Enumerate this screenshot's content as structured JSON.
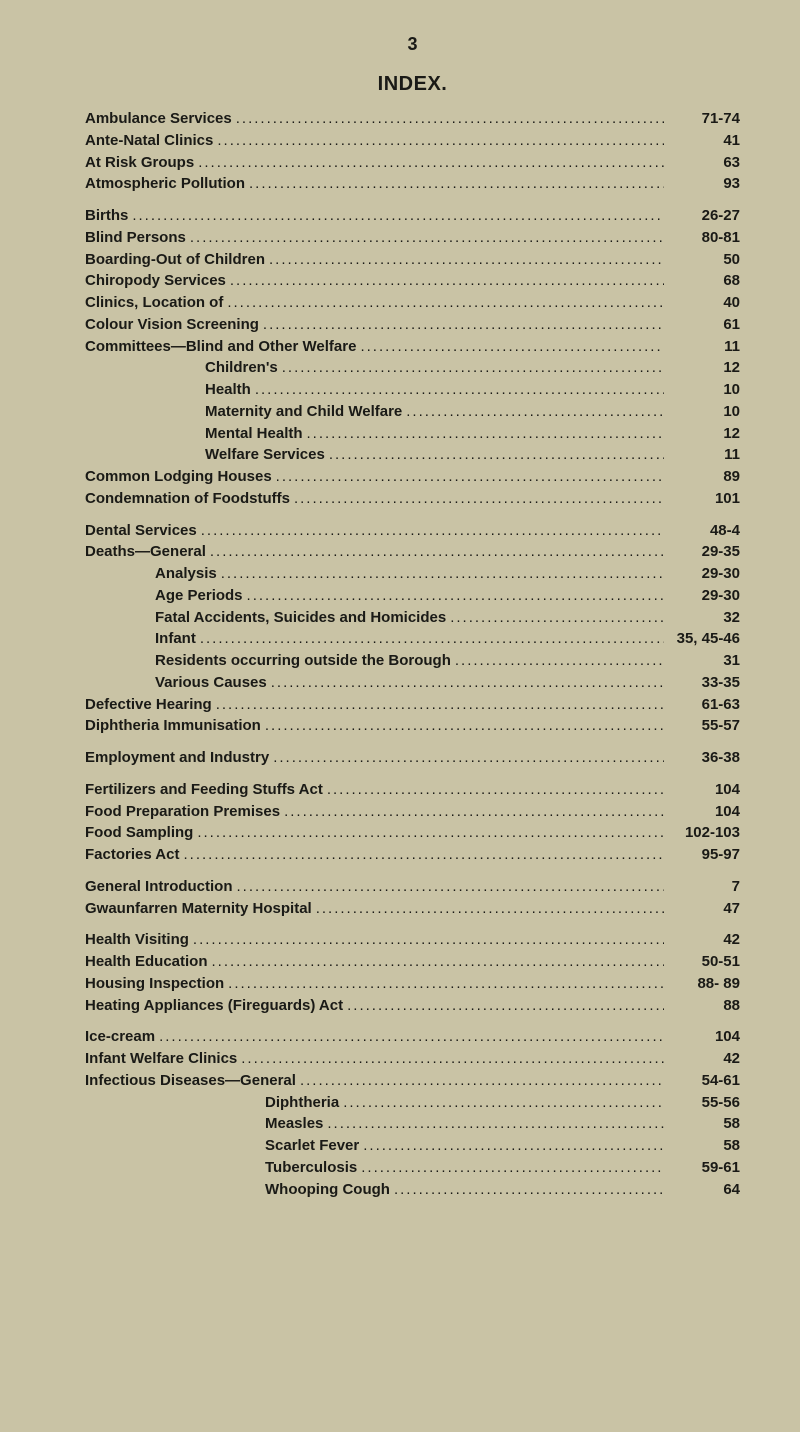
{
  "page_number": "3",
  "title": "INDEX.",
  "sections": [
    {
      "rows": [
        {
          "label": "Ambulance Services",
          "page": "71-74",
          "indent": 0
        },
        {
          "label": "Ante-Natal Clinics",
          "page": "41",
          "indent": 0
        },
        {
          "label": "At Risk Groups",
          "page": "63",
          "indent": 0
        },
        {
          "label": "Atmospheric Pollution",
          "page": "93",
          "indent": 0
        }
      ]
    },
    {
      "rows": [
        {
          "label": "Births",
          "page": "26-27",
          "indent": 0
        },
        {
          "label": "Blind Persons",
          "page": "80-81",
          "indent": 0
        },
        {
          "label": "Boarding-Out of Children",
          "page": "50",
          "indent": 0
        },
        {
          "label": "Chiropody Services",
          "page": "68",
          "indent": 0
        },
        {
          "label": "Clinics, Location of",
          "page": "40",
          "indent": 0
        },
        {
          "label": "Colour Vision Screening",
          "page": "61",
          "indent": 0
        },
        {
          "label": "Committees—Blind and Other Welfare",
          "page": "11",
          "indent": 0
        },
        {
          "label": "Children's",
          "page": "12",
          "indent": 1
        },
        {
          "label": "Health",
          "page": "10",
          "indent": 1
        },
        {
          "label": "Maternity and Child Welfare",
          "page": "10",
          "indent": 1
        },
        {
          "label": "Mental Health",
          "page": "12",
          "indent": 1
        },
        {
          "label": "Welfare Services",
          "page": "11",
          "indent": 1
        },
        {
          "label": "Common Lodging Houses",
          "page": "89",
          "indent": 0
        },
        {
          "label": "Condemnation of Foodstuffs",
          "page": "101",
          "indent": 0
        }
      ]
    },
    {
      "rows": [
        {
          "label": "Dental Services",
          "page": "48-4",
          "indent": 0
        },
        {
          "label": "Deaths—General",
          "page": "29-35",
          "indent": 0
        },
        {
          "label": "Analysis",
          "page": "29-30",
          "indent": 2
        },
        {
          "label": "Age Periods",
          "page": "29-30",
          "indent": 2
        },
        {
          "label": "Fatal Accidents, Suicides and Homicides",
          "page": "32",
          "indent": 2
        },
        {
          "label": "Infant",
          "page": "35, 45-46",
          "indent": 2
        },
        {
          "label": "Residents occurring outside the Borough",
          "page": "31",
          "indent": 2
        },
        {
          "label": "Various Causes",
          "page": "33-35",
          "indent": 2
        },
        {
          "label": "Defective Hearing",
          "page": "61-63",
          "indent": 0
        },
        {
          "label": "Diphtheria Immunisation",
          "page": "55-57",
          "indent": 0
        }
      ]
    },
    {
      "rows": [
        {
          "label": "Employment and Industry",
          "page": "36-38",
          "indent": 0
        }
      ]
    },
    {
      "rows": [
        {
          "label": "Fertilizers and Feeding Stuffs Act",
          "page": "104",
          "indent": 0
        },
        {
          "label": "Food Preparation Premises",
          "page": "104",
          "indent": 0
        },
        {
          "label": "Food Sampling",
          "page": "102-103",
          "indent": 0
        },
        {
          "label": "Factories Act",
          "page": "95-97",
          "indent": 0
        }
      ]
    },
    {
      "rows": [
        {
          "label": "General Introduction",
          "page": "7",
          "indent": 0
        },
        {
          "label": "Gwaunfarren Maternity Hospital",
          "page": "47",
          "indent": 0
        }
      ]
    },
    {
      "rows": [
        {
          "label": "Health Visiting",
          "page": "42",
          "indent": 0
        },
        {
          "label": "Health Education",
          "page": "50-51",
          "indent": 0
        },
        {
          "label": "Housing Inspection",
          "page": "88- 89",
          "indent": 0
        },
        {
          "label": "Heating Appliances (Fireguards) Act",
          "page": "88",
          "indent": 0
        }
      ]
    },
    {
      "rows": [
        {
          "label": "Ice-cream",
          "page": "104",
          "indent": 0
        },
        {
          "label": "Infant Welfare Clinics",
          "page": "42",
          "indent": 0
        },
        {
          "label": "Infectious Diseases—General",
          "page": "54-61",
          "indent": 0
        },
        {
          "label": "Diphtheria",
          "page": "55-56",
          "indent": 3
        },
        {
          "label": "Measles",
          "page": "58",
          "indent": 3
        },
        {
          "label": "Scarlet Fever",
          "page": "58",
          "indent": 3
        },
        {
          "label": "Tuberculosis",
          "page": "59-61",
          "indent": 3
        },
        {
          "label": "Whooping Cough",
          "page": "64",
          "indent": 3
        }
      ]
    }
  ]
}
